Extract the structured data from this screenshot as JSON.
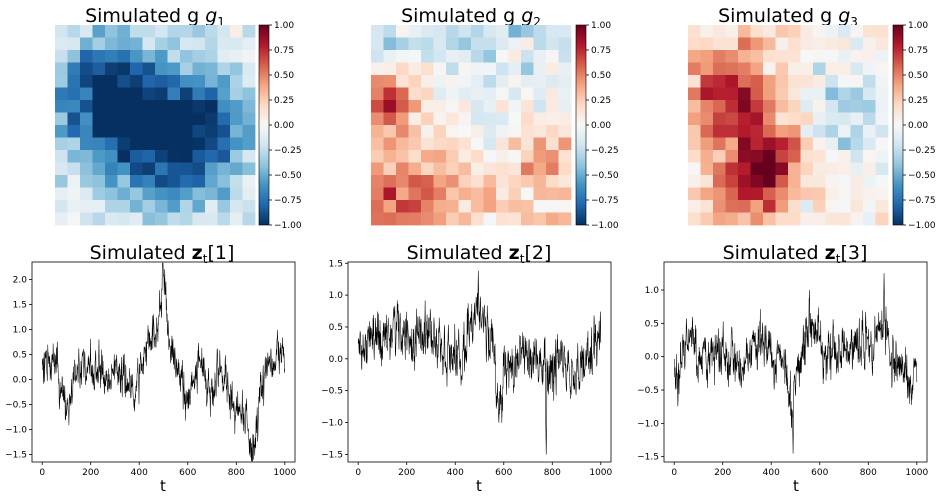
{
  "chart_data": [
    {
      "type": "heatmap",
      "title": "Simulated g",
      "subscript": "1",
      "grid": [
        16,
        16
      ],
      "pattern": "blue-blob",
      "colormap": "RdBu_r",
      "vmin": -1.0,
      "vmax": 1.0,
      "colorbar_ticks": [
        "1.00",
        "0.75",
        "0.50",
        "0.25",
        "0.00",
        "−0.25",
        "−0.50",
        "−0.75",
        "−1.00"
      ]
    },
    {
      "type": "heatmap",
      "title": "Simulated g",
      "subscript": "2",
      "grid": [
        16,
        16
      ],
      "pattern": "red-left-edge",
      "colormap": "RdBu_r",
      "vmin": -1.0,
      "vmax": 1.0,
      "colorbar_ticks": [
        "1.00",
        "0.75",
        "0.50",
        "0.25",
        "0.00",
        "−0.25",
        "−0.50",
        "−0.75",
        "−1.00"
      ]
    },
    {
      "type": "heatmap",
      "title": "Simulated g",
      "subscript": "3",
      "grid": [
        16,
        16
      ],
      "pattern": "red-blob-left",
      "colormap": "RdBu_r",
      "vmin": -1.0,
      "vmax": 1.0,
      "colorbar_ticks": [
        "1.00",
        "0.75",
        "0.50",
        "0.25",
        "0.00",
        "−0.25",
        "−0.50",
        "−0.75",
        "−1.00"
      ]
    },
    {
      "type": "line",
      "title_prefix": "Simulated ",
      "title_bold": "z",
      "title_sub": "t",
      "title_suffix": "[1]",
      "xlabel": "t",
      "xlim": [
        0,
        1000
      ],
      "ylim": [
        -1.65,
        2.35
      ],
      "xticks": [
        "0",
        "200",
        "400",
        "600",
        "800",
        "1000"
      ],
      "yticks": [
        "2.0",
        "1.5",
        "1.0",
        "0.5",
        "0.0",
        "−0.5",
        "−1.0",
        "−1.5"
      ],
      "anchors_t": [
        0,
        60,
        100,
        140,
        190,
        260,
        320,
        380,
        430,
        470,
        500,
        530,
        560,
        600,
        650,
        700,
        740,
        780,
        830,
        870,
        900,
        940,
        990
      ],
      "anchors_y": [
        0.2,
        0.3,
        -0.8,
        0.2,
        0.3,
        0.1,
        0.2,
        -0.3,
        0.7,
        1.0,
        2.0,
        0.8,
        0.0,
        -0.4,
        0.3,
        -0.3,
        0.2,
        -0.5,
        -0.6,
        -1.5,
        -0.2,
        0.2,
        0.5
      ],
      "noise_amplitude": 0.32,
      "peak": {
        "t": 505,
        "y": 2.2
      },
      "trough": {
        "t": 870,
        "y": -1.6
      }
    },
    {
      "type": "line",
      "title_prefix": "Simulated ",
      "title_bold": "z",
      "title_sub": "t",
      "title_suffix": "[2]",
      "xlabel": "t",
      "xlim": [
        0,
        1000
      ],
      "ylim": [
        -1.62,
        1.52
      ],
      "xticks": [
        "0",
        "200",
        "400",
        "600",
        "800",
        "1000"
      ],
      "yticks": [
        "1.5",
        "1.0",
        "0.5",
        "0.0",
        "−0.5",
        "−1.0",
        "−1.5"
      ],
      "anchors_t": [
        0,
        80,
        150,
        220,
        300,
        380,
        430,
        470,
        500,
        550,
        580,
        620,
        680,
        730,
        780,
        830,
        880,
        930,
        990
      ],
      "anchors_y": [
        0.1,
        0.3,
        0.5,
        0.3,
        0.4,
        0.1,
        0.0,
        0.5,
        0.8,
        0.3,
        -0.6,
        -0.1,
        0.1,
        -0.1,
        -0.3,
        0.0,
        -0.3,
        0.0,
        0.2
      ],
      "noise_amplitude": 0.33,
      "peak": {
        "t": 495,
        "y": 1.38
      },
      "trough": {
        "t": 775,
        "y": -1.5
      }
    },
    {
      "type": "line",
      "title_prefix": "Simulated ",
      "title_bold": "z",
      "title_sub": "t",
      "title_suffix": "[3]",
      "xlabel": "t",
      "xlim": [
        0,
        1000
      ],
      "ylim": [
        -1.58,
        1.42
      ],
      "xticks": [
        "0",
        "200",
        "400",
        "600",
        "800",
        "1000"
      ],
      "yticks": [
        "1.0",
        "0.5",
        "0.0",
        "−0.5",
        "−1.0",
        "−1.5"
      ],
      "anchors_t": [
        0,
        60,
        120,
        200,
        280,
        360,
        430,
        480,
        520,
        560,
        620,
        680,
        740,
        800,
        860,
        900,
        950,
        990
      ],
      "anchors_y": [
        -0.3,
        0.2,
        0.0,
        0.1,
        -0.1,
        0.2,
        0.0,
        -0.6,
        0.0,
        0.5,
        0.1,
        0.0,
        0.2,
        0.1,
        0.6,
        -0.1,
        -0.2,
        -0.3
      ],
      "noise_amplitude": 0.3,
      "peak": {
        "t": 865,
        "y": 1.25
      },
      "trough": {
        "t": 490,
        "y": -1.45
      }
    }
  ]
}
